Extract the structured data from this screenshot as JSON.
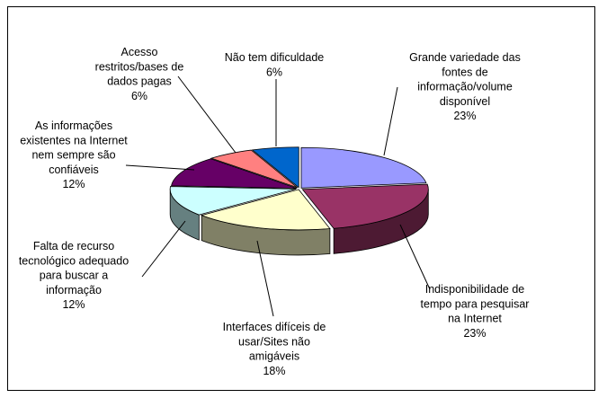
{
  "chart_data": {
    "type": "pie",
    "style": "3d-exploded",
    "title": "",
    "slices": [
      {
        "label": [
          "Grande variedade das",
          "fontes de",
          "informação/volume",
          "disponível"
        ],
        "value": 23,
        "display": "23%",
        "color": "#9999ff"
      },
      {
        "label": [
          "Indisponibilidade de",
          "tempo para pesquisar",
          "na Internet"
        ],
        "value": 23,
        "display": "23%",
        "color": "#993366"
      },
      {
        "label": [
          "Interfaces difíceis de",
          "usar/Sites não",
          "amigáveis"
        ],
        "value": 18,
        "display": "18%",
        "color": "#ffffcc"
      },
      {
        "label": [
          "Falta de recurso",
          "tecnológico adequado",
          "para buscar a",
          "informação"
        ],
        "value": 12,
        "display": "12%",
        "color": "#ccffff"
      },
      {
        "label": [
          "As informações",
          "existentes na Internet",
          "nem sempre são",
          "confiáveis"
        ],
        "value": 12,
        "display": "12%",
        "color": "#660066"
      },
      {
        "label": [
          "Acesso",
          "restritos/bases de",
          "dados pagas"
        ],
        "value": 6,
        "display": "6%",
        "color": "#ff8080"
      },
      {
        "label": [
          "Não tem dificuldade"
        ],
        "value": 6,
        "display": "6%",
        "color": "#0066cc"
      }
    ]
  }
}
